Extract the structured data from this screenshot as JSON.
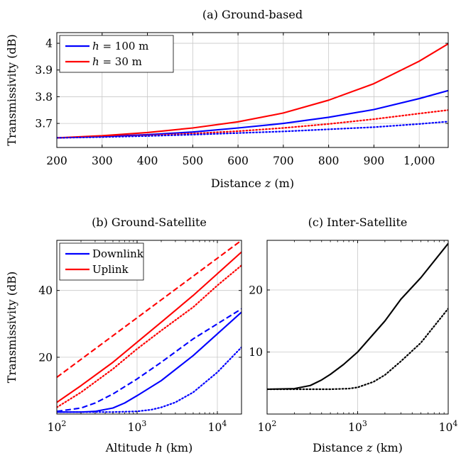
{
  "chart_data": [
    {
      "id": "a",
      "type": "line",
      "title": "(a) Ground-based",
      "xlabel": "Distance z (m)",
      "ylabel": "Transmissivity (dB)",
      "xlim": [
        200,
        1064
      ],
      "ylim": [
        3.61,
        4.04
      ],
      "grid": true,
      "xticks": [
        200,
        300,
        400,
        500,
        600,
        700,
        800,
        900,
        1000
      ],
      "xtick_labels": [
        "200",
        "300",
        "400",
        "500",
        "600",
        "700",
        "800",
        "900",
        "1,000"
      ],
      "yticks": [
        3.7,
        3.8,
        3.9,
        4.0
      ],
      "ytick_labels": [
        "3.7",
        "3.8",
        "3.9",
        "4"
      ],
      "legend_position": "top-left",
      "legend": [
        {
          "label": "h = 100 m",
          "color": "#0000ff"
        },
        {
          "label": "h = 30 m",
          "color": "#ff0000"
        }
      ],
      "series": [
        {
          "color": "#0000ff",
          "style": "solid",
          "x": [
            200,
            300,
            400,
            500,
            600,
            700,
            800,
            900,
            1000,
            1064
          ],
          "y": [
            3.646,
            3.651,
            3.658,
            3.668,
            3.683,
            3.7,
            3.723,
            3.752,
            3.793,
            3.823
          ]
        },
        {
          "color": "#ff0000",
          "style": "solid",
          "x": [
            200,
            300,
            400,
            500,
            600,
            700,
            800,
            900,
            1000,
            1064
          ],
          "y": [
            3.646,
            3.654,
            3.666,
            3.683,
            3.706,
            3.739,
            3.787,
            3.849,
            3.933,
            3.998
          ]
        },
        {
          "color": "#ff0000",
          "style": "dotted",
          "x": [
            200,
            300,
            400,
            500,
            600,
            700,
            800,
            900,
            1000,
            1064
          ],
          "y": [
            3.646,
            3.65,
            3.655,
            3.662,
            3.671,
            3.683,
            3.698,
            3.716,
            3.737,
            3.75
          ]
        },
        {
          "color": "#0000ff",
          "style": "dotted",
          "x": [
            200,
            300,
            400,
            500,
            600,
            700,
            800,
            900,
            1000,
            1064
          ],
          "y": [
            3.646,
            3.649,
            3.653,
            3.658,
            3.664,
            3.67,
            3.678,
            3.686,
            3.698,
            3.707
          ]
        }
      ]
    },
    {
      "id": "b",
      "type": "line",
      "title": "(b) Ground-Satellite",
      "xlabel": "Altitude h (km)",
      "ylabel": "Transmissivity (dB)",
      "xscale": "log",
      "xlim": [
        100,
        20000
      ],
      "ylim": [
        3,
        55
      ],
      "grid": true,
      "xticks": [
        100,
        1000,
        10000
      ],
      "xtick_labels": [
        {
          "base": "10",
          "exp": "2"
        },
        {
          "base": "10",
          "exp": "3"
        },
        {
          "base": "10",
          "exp": "4"
        }
      ],
      "yticks": [
        20,
        40
      ],
      "ytick_labels": [
        "20",
        "40"
      ],
      "legend_position": "top-left",
      "legend": [
        {
          "label": "Downlink",
          "color": "#0000ff"
        },
        {
          "label": "Uplink",
          "color": "#ff0000"
        }
      ],
      "series": [
        {
          "color": "#ff0000",
          "style": "dashed",
          "x": [
            100,
            20000
          ],
          "y": [
            14.0,
            55.0
          ]
        },
        {
          "color": "#ff0000",
          "style": "solid",
          "x": [
            100,
            200,
            500,
            1000,
            2000,
            5000,
            10000,
            20000
          ],
          "y": [
            6.5,
            11.5,
            18.5,
            24.5,
            30.5,
            38.5,
            45.0,
            51.5
          ]
        },
        {
          "color": "#ff0000",
          "style": "dotted",
          "x": [
            100,
            200,
            500,
            1000,
            2000,
            5000,
            10000,
            20000
          ],
          "y": [
            5.0,
            9.5,
            16.5,
            22.5,
            28.0,
            35.0,
            41.5,
            47.5
          ]
        },
        {
          "color": "#0000ff",
          "style": "dashed",
          "x": [
            100,
            200,
            300,
            500,
            1000,
            2000,
            5000,
            10000,
            20000
          ],
          "y": [
            3.8,
            4.8,
            6.3,
            9.0,
            13.5,
            18.5,
            25.5,
            30.0,
            34.5
          ]
        },
        {
          "color": "#0000ff",
          "style": "solid",
          "x": [
            100,
            200,
            300,
            500,
            700,
            1000,
            2000,
            5000,
            10000,
            20000
          ],
          "y": [
            3.6,
            3.6,
            3.8,
            4.8,
            6.3,
            8.5,
            13.0,
            20.5,
            27.0,
            33.5
          ]
        },
        {
          "color": "#0000ff",
          "style": "dotted",
          "x": [
            100,
            500,
            1000,
            1500,
            2000,
            3000,
            5000,
            10000,
            20000
          ],
          "y": [
            3.6,
            3.6,
            3.8,
            4.3,
            5.0,
            6.5,
            9.5,
            15.5,
            23.0
          ]
        }
      ]
    },
    {
      "id": "c",
      "type": "line",
      "title": "(c) Inter-Satellite",
      "xlabel": "Distance z (km)",
      "ylabel": "",
      "xscale": "log",
      "xlim": [
        100,
        10000
      ],
      "ylim": [
        0,
        28
      ],
      "grid": true,
      "xticks": [
        100,
        1000,
        10000
      ],
      "xtick_labels": [
        {
          "base": "10",
          "exp": "2"
        },
        {
          "base": "10",
          "exp": "3"
        },
        {
          "base": "10",
          "exp": "4"
        }
      ],
      "yticks": [
        10,
        20
      ],
      "ytick_labels": [
        "10",
        "20"
      ],
      "series": [
        {
          "color": "#000000",
          "style": "solid",
          "x": [
            100,
            200,
            300,
            400,
            500,
            700,
            1000,
            2000,
            3000,
            5000,
            10000
          ],
          "y": [
            4.0,
            4.1,
            4.6,
            5.5,
            6.4,
            8.0,
            10.0,
            15.0,
            18.5,
            22.0,
            27.5
          ]
        },
        {
          "color": "#000000",
          "style": "dotted",
          "x": [
            100,
            500,
            800,
            1000,
            1500,
            2000,
            3000,
            5000,
            10000
          ],
          "y": [
            4.0,
            4.0,
            4.1,
            4.3,
            5.2,
            6.3,
            8.5,
            11.5,
            17.0
          ]
        }
      ]
    }
  ]
}
